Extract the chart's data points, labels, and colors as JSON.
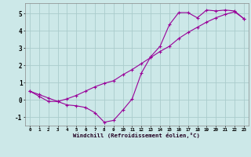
{
  "line1_x": [
    0,
    1,
    2,
    3,
    4,
    5,
    6,
    7,
    8,
    9,
    10,
    11,
    12,
    13,
    14,
    15,
    16,
    17,
    18,
    19,
    20,
    21,
    22,
    23
  ],
  "line1_y": [
    0.5,
    0.2,
    -0.1,
    -0.1,
    -0.3,
    -0.35,
    -0.45,
    -0.75,
    -1.3,
    -1.2,
    -0.6,
    0.05,
    1.55,
    2.5,
    3.1,
    4.35,
    5.05,
    5.05,
    4.75,
    5.2,
    5.15,
    5.2,
    5.15,
    4.7
  ],
  "line2_x": [
    0,
    1,
    2,
    3,
    4,
    5,
    6,
    7,
    8,
    9,
    10,
    11,
    12,
    13,
    14,
    15,
    16,
    17,
    18,
    19,
    20,
    21,
    22,
    23
  ],
  "line2_y": [
    0.5,
    0.3,
    0.1,
    -0.1,
    0.05,
    0.25,
    0.5,
    0.75,
    0.95,
    1.1,
    1.45,
    1.75,
    2.1,
    2.45,
    2.8,
    3.1,
    3.55,
    3.9,
    4.2,
    4.5,
    4.75,
    4.95,
    5.1,
    4.7
  ],
  "line_color": "#990099",
  "bg_color": "#cce8e8",
  "grid_color": "#aacccc",
  "xlim": [
    -0.5,
    23.5
  ],
  "ylim": [
    -1.5,
    5.6
  ],
  "yticks": [
    -1,
    0,
    1,
    2,
    3,
    4,
    5
  ],
  "xticks": [
    0,
    1,
    2,
    3,
    4,
    5,
    6,
    7,
    8,
    9,
    10,
    11,
    12,
    13,
    14,
    15,
    16,
    17,
    18,
    19,
    20,
    21,
    22,
    23
  ],
  "xlabel": "Windchill (Refroidissement éolien,°C)"
}
